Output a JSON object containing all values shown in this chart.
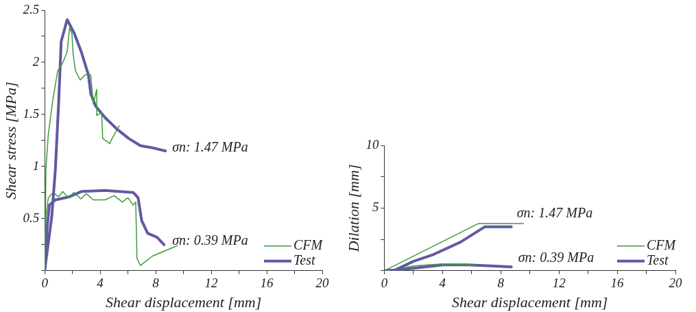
{
  "chart_data": [
    {
      "type": "line",
      "xlabel": "Shear displacement [mm]",
      "ylabel": "Shear stress [MPa]",
      "xlim": [
        0,
        20
      ],
      "xticks": [
        0,
        {
          "value": 2,
          "label": null
        },
        4,
        {
          "value": 6,
          "label": null
        },
        8,
        {
          "value": 10,
          "label": null
        },
        12,
        {
          "value": 14,
          "label": null
        },
        16,
        {
          "value": 18,
          "label": null
        },
        20
      ],
      "ylim": [
        0,
        2.5
      ],
      "yticks": [
        {
          "value": 0,
          "label": null
        },
        {
          "value": 0.25,
          "label": null
        },
        0.5,
        {
          "value": 0.75,
          "label": null
        },
        1,
        {
          "value": 1.25,
          "label": null
        },
        1.5,
        {
          "value": 1.75,
          "label": null
        },
        2,
        {
          "value": 2.25,
          "label": null
        },
        2.5
      ],
      "grid": false,
      "legend": "bottom right",
      "marker": "none",
      "series": [
        {
          "name": "CFM",
          "color": "#3c9b3c",
          "x": [
            0,
            0.09,
            0.26,
            0.6,
            0.94,
            1.28,
            1.62,
            1.79,
            1.96,
            2.05,
            2.22,
            2.56,
            2.9,
            3.32,
            3.5,
            3.75,
            3.75,
            4.1,
            4.18,
            4.69,
            4.86,
            5.37
          ],
          "values": [
            0,
            0.97,
            1.31,
            1.65,
            1.92,
            1.99,
            2.1,
            2.33,
            2.28,
            2.08,
            1.92,
            1.83,
            1.88,
            1.88,
            1.6,
            1.74,
            1.49,
            1.52,
            1.27,
            1.22,
            1.27,
            1.39
          ]
        },
        {
          "name": "Test",
          "color": "#5f5aa0",
          "x": [
            0,
            0.51,
            0.77,
            1.02,
            1.19,
            1.62,
            2.13,
            2.64,
            3.15,
            3.32,
            3.67,
            4.35,
            5.2,
            6.05,
            6.9,
            7.76,
            8.7
          ],
          "values": [
            0,
            0.52,
            0.97,
            1.65,
            2.2,
            2.41,
            2.28,
            2.1,
            1.88,
            1.7,
            1.58,
            1.47,
            1.36,
            1.27,
            1.2,
            1.18,
            1.15
          ]
        },
        {
          "color": "#3c9b3c",
          "x": [
            0,
            0.09,
            0.26,
            0.6,
            1.0,
            1.3,
            1.7,
            2.1,
            2.6,
            3.0,
            3.5,
            4.35,
            5.0,
            5.6,
            6.0,
            6.39,
            6.56,
            6.65,
            6.9,
            7.76,
            9.55
          ],
          "values": [
            0.14,
            0.52,
            0.7,
            0.75,
            0.71,
            0.76,
            0.7,
            0.75,
            0.69,
            0.74,
            0.68,
            0.68,
            0.72,
            0.66,
            0.7,
            0.63,
            0.66,
            0.12,
            0.05,
            0.14,
            0.24
          ]
        },
        {
          "color": "#5f5aa0",
          "x": [
            0,
            0.17,
            0.34,
            0.77,
            1.79,
            2.64,
            4.35,
            6.39,
            6.73,
            6.99,
            7.42,
            8.1,
            8.6
          ],
          "values": [
            0,
            0.41,
            0.63,
            0.68,
            0.71,
            0.76,
            0.77,
            0.75,
            0.7,
            0.48,
            0.36,
            0.32,
            0.25
          ]
        }
      ],
      "annotations": [
        "σn: 1.47 MPa",
        "σn: 0.39 MPa"
      ]
    },
    {
      "type": "line",
      "xlabel": "Shear displacement [mm]",
      "ylabel": "Dilation [mm]",
      "xlim": [
        0,
        20
      ],
      "xticks": [
        0,
        {
          "value": 2,
          "label": null
        },
        4,
        {
          "value": 6,
          "label": null
        },
        8,
        {
          "value": 10,
          "label": null
        },
        12,
        {
          "value": 14,
          "label": null
        },
        16,
        {
          "value": 18,
          "label": null
        },
        20
      ],
      "ylim": [
        0,
        10
      ],
      "yticks": [
        {
          "value": 0,
          "label": null
        },
        {
          "value": 2.5,
          "label": null
        },
        5,
        {
          "value": 7.5,
          "label": null
        },
        10
      ],
      "grid": false,
      "legend": "bottom right",
      "marker": "none",
      "series": [
        {
          "name": "CFM",
          "color": "#3c9b3c",
          "x": [
            0,
            6.48,
            9.57
          ],
          "values": [
            0,
            3.77,
            3.77
          ]
        },
        {
          "name": "Test",
          "color": "#5f5aa0",
          "x": [
            0,
            0.72,
            2.0,
            3.39,
            5.23,
            6.56,
            6.9,
            8.73
          ],
          "values": [
            0,
            0.04,
            0.75,
            1.3,
            2.28,
            3.25,
            3.5,
            3.5
          ]
        },
        {
          "color": "#3c9b3c",
          "x": [
            0,
            0.88,
            2.05,
            3.89,
            6.23
          ],
          "values": [
            0,
            0.14,
            0.39,
            0.53,
            0.47
          ]
        },
        {
          "color": "#5f5aa0",
          "x": [
            0,
            0.38,
            1.55,
            4.06,
            5.73,
            7.56,
            8.73
          ],
          "values": [
            0,
            0,
            0.14,
            0.47,
            0.47,
            0.37,
            0.31
          ]
        }
      ],
      "annotations": [
        "σn: 1.47 MPa",
        "σn: 0.39 MPa"
      ]
    }
  ]
}
